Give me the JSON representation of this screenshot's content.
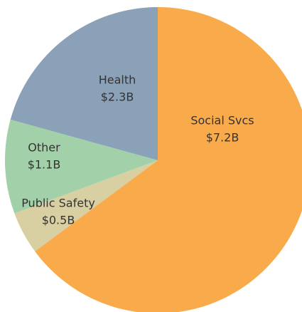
{
  "chart_data": {
    "type": "pie",
    "categories": [
      "Social Svcs",
      "Public Safety",
      "Other",
      "Health"
    ],
    "values": [
      7.2,
      0.5,
      1.1,
      2.3
    ],
    "value_labels": [
      "$7.2B",
      "$0.5B",
      "$1.1B",
      "$2.3B"
    ],
    "colors": [
      "#f9ab4b",
      "#d8cfa3",
      "#a2d0a8",
      "#8aa1b7"
    ]
  }
}
